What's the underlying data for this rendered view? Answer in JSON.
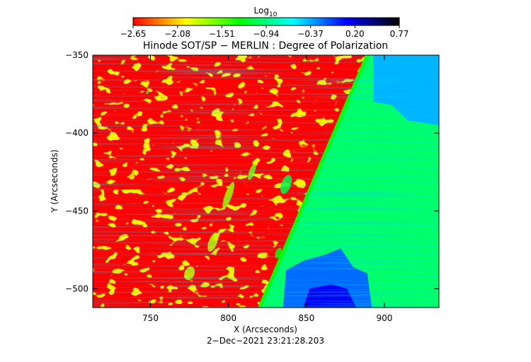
{
  "chart_data": {
    "type": "heatmap",
    "title": "Hinode SOT/SP − MERLIN : Degree of Polarization",
    "xlabel": "X (Arcseconds)",
    "ylabel": "Y (Arcseconds)",
    "footer": "2−Dec−2021 23:21:28.203",
    "colorbar": {
      "label_base": "Log",
      "label_sub": "10",
      "ticks": [
        "−2.65",
        "−2.08",
        "−1.51",
        "−0.94",
        "−0.37",
        "0.20",
        "0.77"
      ],
      "range": [
        -2.65,
        0.77
      ],
      "colors": [
        "#ff0000",
        "#ffff00",
        "#00ff00",
        "#00ffff",
        "#0000ff",
        "#000000"
      ]
    },
    "xlim": [
      713,
      935
    ],
    "ylim": [
      -512,
      -350
    ],
    "x_ticks": [
      {
        "value": 750,
        "label": "750"
      },
      {
        "value": 800,
        "label": "800"
      },
      {
        "value": 850,
        "label": "850"
      },
      {
        "value": 900,
        "label": "900"
      }
    ],
    "y_ticks": [
      {
        "value": -350,
        "label": "−350"
      },
      {
        "value": -400,
        "label": "−400"
      },
      {
        "value": -450,
        "label": "−450"
      },
      {
        "value": -500,
        "label": "−500"
      }
    ],
    "regions": {
      "disk_value": -2.65,
      "limb_value": -1.3,
      "offlimb_value": -1.0,
      "outer_value": -0.4,
      "deep_value": 0.1
    }
  }
}
